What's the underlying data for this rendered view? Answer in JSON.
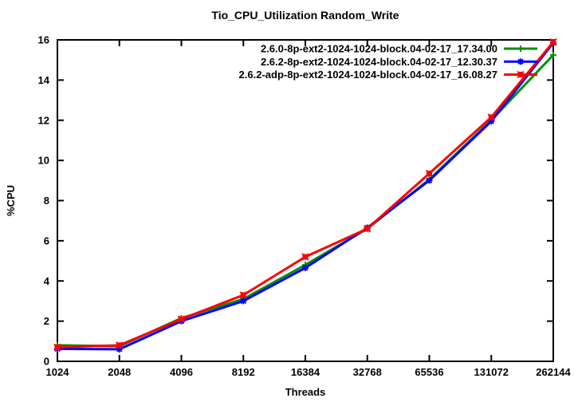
{
  "page": {
    "background": "#ffffff",
    "axis_color": "#000000",
    "text_color": "#000000"
  },
  "chart_data": {
    "type": "line",
    "title": "Tio_CPU_Utilization Random_Write",
    "xlabel": "Threads",
    "ylabel": "%CPU",
    "x": [
      1024,
      2048,
      4096,
      8192,
      16384,
      32768,
      65536,
      131072,
      262144
    ],
    "x_tick_labels": [
      "1024",
      "2048",
      "4096",
      "8192",
      "16384",
      "32768",
      "65536",
      "131072",
      "262144"
    ],
    "x_scale": "log2-categorical",
    "y_ticks": [
      0,
      2,
      4,
      6,
      8,
      10,
      12,
      14,
      16
    ],
    "ylim": [
      0,
      16
    ],
    "grid": false,
    "legend_position": "top-right-inside",
    "series": [
      {
        "name": "2.6.0-8p-ext2-1024-1024-block.04-02-17_17.34.00",
        "color": "#008f00",
        "marker": "plus",
        "values": [
          0.8,
          0.75,
          2.15,
          3.1,
          4.8,
          6.6,
          9.05,
          12.0,
          15.25
        ]
      },
      {
        "name": "2.6.2-8p-ext2-1024-1024-block.04-02-17_12.30.37",
        "color": "#0000ff",
        "marker": "asterisk",
        "values": [
          0.62,
          0.6,
          2.0,
          3.0,
          4.65,
          6.65,
          9.0,
          11.95,
          15.85
        ]
      },
      {
        "name": "2.6.2-adp-8p-ext2-1024-1024-block.04-02-17_16.08.27",
        "color": "#ff0000",
        "marker": "filled-square",
        "values": [
          0.7,
          0.8,
          2.1,
          3.3,
          5.2,
          6.6,
          9.35,
          12.15,
          15.9
        ]
      }
    ]
  }
}
